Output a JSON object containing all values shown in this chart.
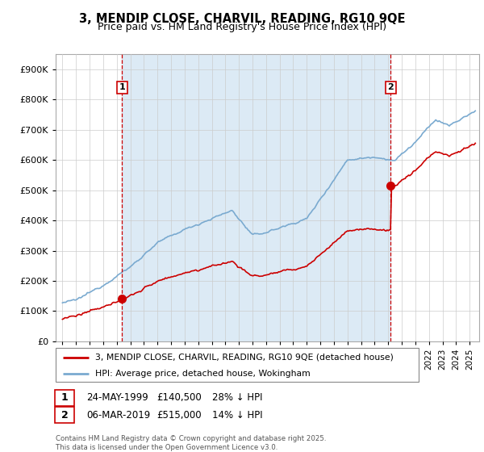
{
  "title": "3, MENDIP CLOSE, CHARVIL, READING, RG10 9QE",
  "subtitle": "Price paid vs. HM Land Registry's House Price Index (HPI)",
  "legend_line1": "3, MENDIP CLOSE, CHARVIL, READING, RG10 9QE (detached house)",
  "legend_line2": "HPI: Average price, detached house, Wokingham",
  "property_color": "#cc0000",
  "hpi_color": "#7aaad0",
  "shade_color": "#dceaf5",
  "annotation1_label": "1",
  "annotation1_date": "24-MAY-1999",
  "annotation1_price": "£140,500",
  "annotation1_hpi": "28% ↓ HPI",
  "annotation2_label": "2",
  "annotation2_date": "06-MAR-2019",
  "annotation2_price": "£515,000",
  "annotation2_hpi": "14% ↓ HPI",
  "ylim_min": 0,
  "ylim_max": 950000,
  "xlim_min": 1994.5,
  "xlim_max": 2025.7,
  "footer": "Contains HM Land Registry data © Crown copyright and database right 2025.\nThis data is licensed under the Open Government Licence v3.0.",
  "background_color": "#ffffff",
  "grid_color": "#cccccc",
  "sale1_year": 1999.39,
  "sale1_price": 140500,
  "sale2_year": 2019.18,
  "sale2_price": 515000
}
